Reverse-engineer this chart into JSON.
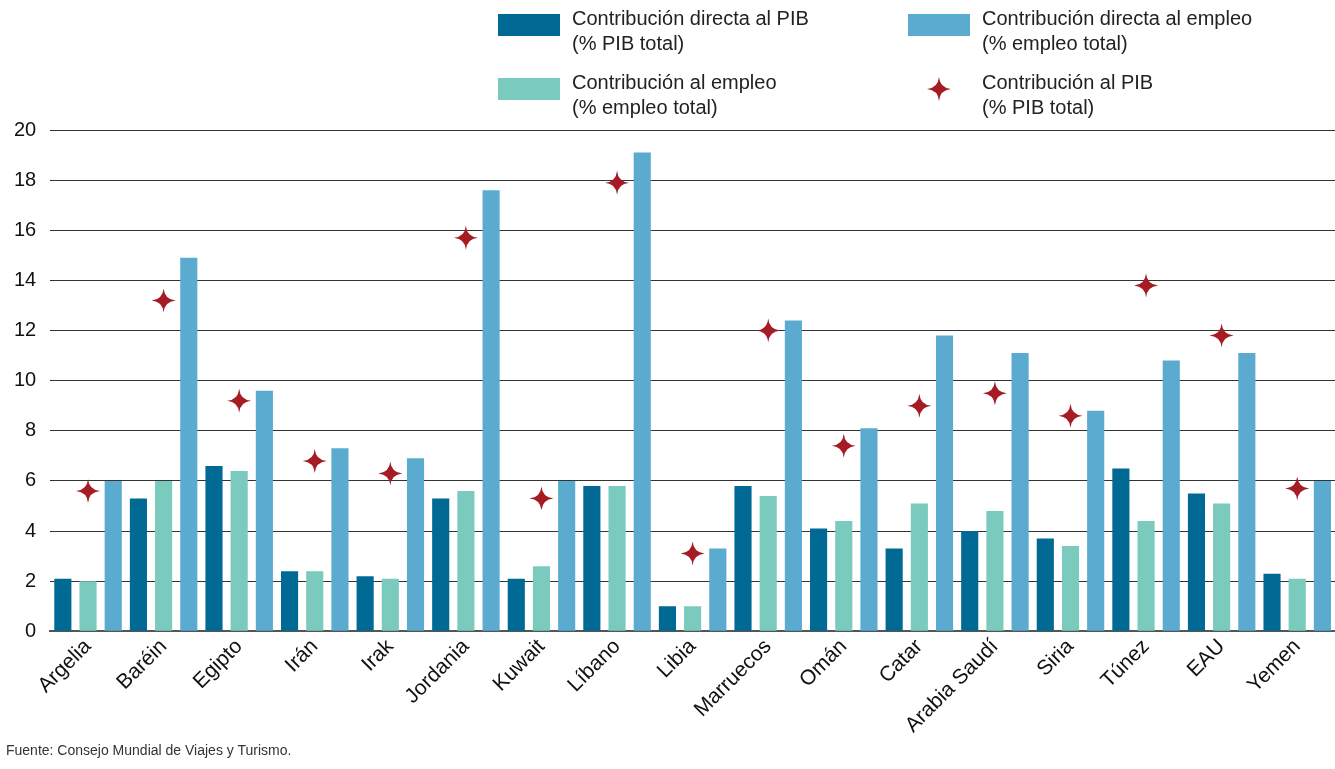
{
  "chart_data": {
    "type": "bar",
    "categories": [
      "Argelia",
      "Baréin",
      "Egipto",
      "Irán",
      "Irak",
      "Jordania",
      "Kuwait",
      "Líbano",
      "Libia",
      "Marruecos",
      "Omán",
      "Catar",
      "Arabia Saudí",
      "Siria",
      "Túnez",
      "EAU",
      "Yemen"
    ],
    "series": [
      {
        "name": "Contribución directa al PIB (% PIB total)",
        "color": "#006a94",
        "values": [
          2.1,
          5.3,
          6.6,
          2.4,
          2.2,
          5.3,
          2.1,
          5.8,
          1.0,
          5.8,
          4.1,
          3.3,
          4.0,
          3.7,
          6.5,
          5.5,
          2.3
        ]
      },
      {
        "name": "Contribución al empleo (% empleo total)",
        "color": "#7acbbd",
        "values": [
          2.0,
          6.0,
          6.4,
          2.4,
          2.1,
          5.6,
          2.6,
          5.8,
          1.0,
          5.4,
          4.4,
          5.1,
          4.8,
          3.4,
          4.4,
          5.1,
          2.1
        ]
      },
      {
        "name": "Contribución directa al empleo (% empleo total)",
        "color": "#5aabcf",
        "values": [
          6.0,
          14.9,
          9.6,
          7.3,
          6.9,
          17.6,
          6.0,
          19.1,
          3.3,
          12.4,
          8.1,
          11.8,
          11.1,
          8.8,
          10.8,
          11.1,
          6.0
        ]
      },
      {
        "name": "Contribución al PIB (% PIB total)",
        "color": "#a51c24",
        "type": "scatter",
        "marker": "star",
        "x": [
          "Argelia",
          "Baréin",
          "Egipto",
          "Irán",
          "Irak",
          "Jordania",
          "Kuwait",
          "Líbano",
          "Libia",
          "Marruecos",
          "Omán",
          "Catar",
          "Arabia Saudí",
          "Siria",
          "Túnez",
          "EAU",
          "Yemen"
        ],
        "values": [
          5.6,
          13.2,
          9.2,
          6.8,
          6.3,
          15.7,
          5.3,
          17.9,
          3.1,
          12.0,
          7.4,
          9.0,
          9.5,
          8.6,
          13.8,
          11.8,
          5.7
        ]
      }
    ],
    "ylim": [
      0,
      20
    ],
    "yticks": [
      0,
      2,
      4,
      6,
      8,
      10,
      12,
      14,
      16,
      18,
      20
    ],
    "grid": "y",
    "legend": "top right",
    "annotations": [
      "Fuente: Consejo Mundial de Viajes y Turismo."
    ]
  }
}
